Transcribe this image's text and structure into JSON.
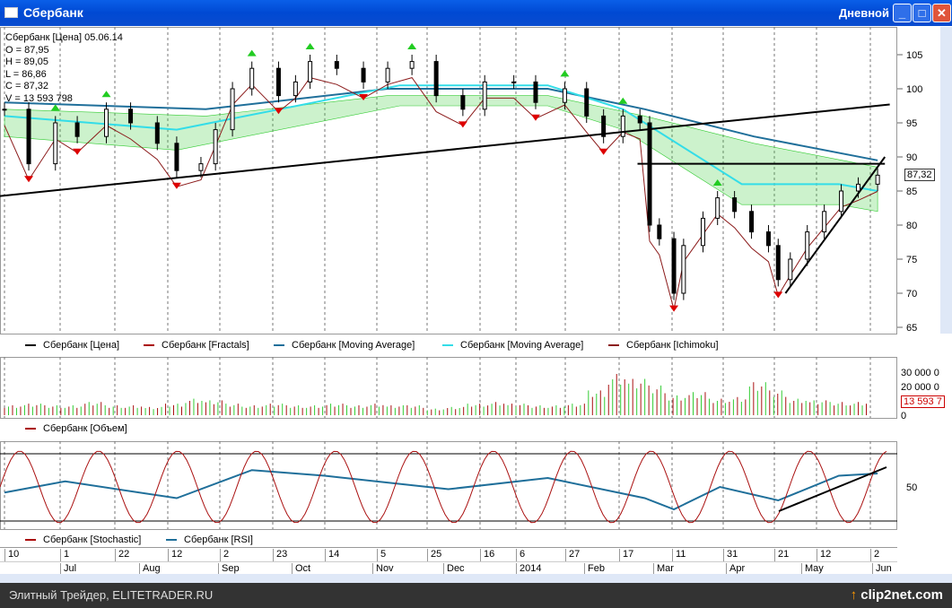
{
  "window": {
    "title": "Сбербанк",
    "period": "Дневной",
    "buttons": [
      "minimize",
      "maximize",
      "close"
    ]
  },
  "info": {
    "header": "Сбербанк [Цена] 05.06.14",
    "open": "O = 87,95",
    "high": "H = 89,05",
    "low": "L = 86,86",
    "close": "C = 87,32",
    "volume": "V = 13 593 798"
  },
  "price_panel": {
    "last_price_label": "87,32",
    "y_ticks": [
      "105",
      "100",
      "95",
      "90",
      "85",
      "80",
      "75",
      "70",
      "65"
    ]
  },
  "legend_price": [
    "Сбербанк [Цена]",
    "Сбербанк [Fractals]",
    "Сбербанк [Moving Average]",
    "Сбербанк [Moving Average]",
    "Сбербанк [Ichimoku]"
  ],
  "legend_volume": [
    "Сбербанк [Объем]"
  ],
  "legend_osc": [
    "Сбербанк [Stochastic]",
    "Сбербанк [RSI]"
  ],
  "volume_panel": {
    "y_ticks": [
      "30 000 0",
      "20 000 0",
      "0"
    ],
    "last_volume_label": "13 593 7"
  },
  "osc_panel": {
    "y_ticks": [
      "50"
    ]
  },
  "date_axis": {
    "days": [
      "10",
      "1",
      "22",
      "12",
      "2",
      "23",
      "14",
      "5",
      "25",
      "16",
      "6",
      "27",
      "17",
      "11",
      "31",
      "21",
      "12",
      "2"
    ],
    "months": [
      "Jul",
      "Aug",
      "Sep",
      "Oct",
      "Nov",
      "Dec",
      "2014",
      "Feb",
      "Mar",
      "Apr",
      "May",
      "Jun"
    ]
  },
  "footer": {
    "text": "Элитный Трейдер, ELITETRADER.RU",
    "logo": "clip2net.com"
  },
  "colors": {
    "price": "#000000",
    "fractal_up": "#22cc22",
    "fractal_down": "#dd0000",
    "ma_slow": "#1f6f9a",
    "ma_fast": "#33dde8",
    "ichimoku": "#8b1a1a",
    "cloud": "#33cc33",
    "volume_up": "#33cc33",
    "volume_down": "#aa1111",
    "rsi": "#1f6f9a",
    "stochastic": "#aa1111"
  },
  "chart_data": {
    "type": "candlestick",
    "ylim": [
      64,
      108
    ],
    "close": [
      [
        "2013-06-10",
        97
      ],
      [
        "2013-06-20",
        89
      ],
      [
        "2013-07-01",
        95
      ],
      [
        "2013-07-10",
        93
      ],
      [
        "2013-07-22",
        97
      ],
      [
        "2013-08-01",
        95
      ],
      [
        "2013-08-12",
        92
      ],
      [
        "2013-08-20",
        88
      ],
      [
        "2013-08-30",
        89
      ],
      [
        "2013-09-05",
        94
      ],
      [
        "2013-09-12",
        100
      ],
      [
        "2013-09-20",
        103
      ],
      [
        "2013-10-01",
        99
      ],
      [
        "2013-10-08",
        101
      ],
      [
        "2013-10-14",
        104
      ],
      [
        "2013-10-25",
        103
      ],
      [
        "2013-11-05",
        101
      ],
      [
        "2013-11-15",
        103
      ],
      [
        "2013-11-25",
        104
      ],
      [
        "2013-12-05",
        99
      ],
      [
        "2013-12-16",
        97
      ],
      [
        "2013-12-25",
        101
      ],
      [
        "2014-01-06",
        101
      ],
      [
        "2014-01-15",
        98
      ],
      [
        "2014-01-27",
        100
      ],
      [
        "2014-02-05",
        96
      ],
      [
        "2014-02-12",
        93
      ],
      [
        "2014-02-20",
        96
      ],
      [
        "2014-02-27",
        95
      ],
      [
        "2014-03-03",
        80
      ],
      [
        "2014-03-07",
        78
      ],
      [
        "2014-03-13",
        70
      ],
      [
        "2014-03-17",
        77
      ],
      [
        "2014-03-25",
        81
      ],
      [
        "2014-03-31",
        84
      ],
      [
        "2014-04-07",
        82
      ],
      [
        "2014-04-14",
        79
      ],
      [
        "2014-04-21",
        77
      ],
      [
        "2014-04-25",
        72
      ],
      [
        "2014-04-30",
        75
      ],
      [
        "2014-05-07",
        79
      ],
      [
        "2014-05-14",
        82
      ],
      [
        "2014-05-21",
        85
      ],
      [
        "2014-05-28",
        86
      ],
      [
        "2014-06-05",
        87.32
      ]
    ],
    "ma_slow": [
      [
        "2013-06-10",
        98
      ],
      [
        "2013-09-01",
        97
      ],
      [
        "2013-11-15",
        100
      ],
      [
        "2014-01-20",
        100
      ],
      [
        "2014-03-01",
        97
      ],
      [
        "2014-04-15",
        93
      ],
      [
        "2014-06-05",
        89.5
      ]
    ],
    "ma_fast": [
      [
        "2013-06-10",
        96
      ],
      [
        "2013-08-20",
        94
      ],
      [
        "2013-11-20",
        100.5
      ],
      [
        "2014-01-20",
        100.5
      ],
      [
        "2014-02-20",
        97
      ],
      [
        "2014-04-10",
        86
      ],
      [
        "2014-05-20",
        86
      ],
      [
        "2014-06-05",
        85
      ]
    ],
    "trendlines": [
      {
        "from": [
          "2013-06-01",
          84
        ],
        "to": [
          "2014-06-10",
          97.7
        ]
      },
      {
        "from": [
          "2014-02-26",
          89
        ],
        "to": [
          "2014-06-08",
          89
        ]
      },
      {
        "from": [
          "2014-04-28",
          70
        ],
        "to": [
          "2014-06-08",
          90
        ]
      }
    ],
    "volume_weekly": [
      6,
      7,
      6,
      6,
      8,
      6,
      6,
      5,
      7,
      10,
      9,
      7,
      6,
      7,
      6,
      6,
      7,
      6,
      7,
      6,
      6,
      4,
      5,
      7,
      8,
      7,
      6,
      6,
      7,
      15,
      25,
      22,
      18,
      12,
      14,
      10,
      11,
      20,
      15,
      10,
      9,
      8,
      8
    ],
    "rsi": [
      [
        "2013-06-10",
        45
      ],
      [
        "2013-07-05",
        55
      ],
      [
        "2013-08-20",
        40
      ],
      [
        "2013-09-20",
        65
      ],
      [
        "2013-10-20",
        60
      ],
      [
        "2013-12-10",
        48
      ],
      [
        "2014-01-20",
        58
      ],
      [
        "2014-03-01",
        40
      ],
      [
        "2014-03-13",
        30
      ],
      [
        "2014-04-01",
        50
      ],
      [
        "2014-04-25",
        38
      ],
      [
        "2014-05-20",
        60
      ],
      [
        "2014-06-05",
        62
      ]
    ],
    "stochastic_range": [
      20,
      80
    ]
  }
}
